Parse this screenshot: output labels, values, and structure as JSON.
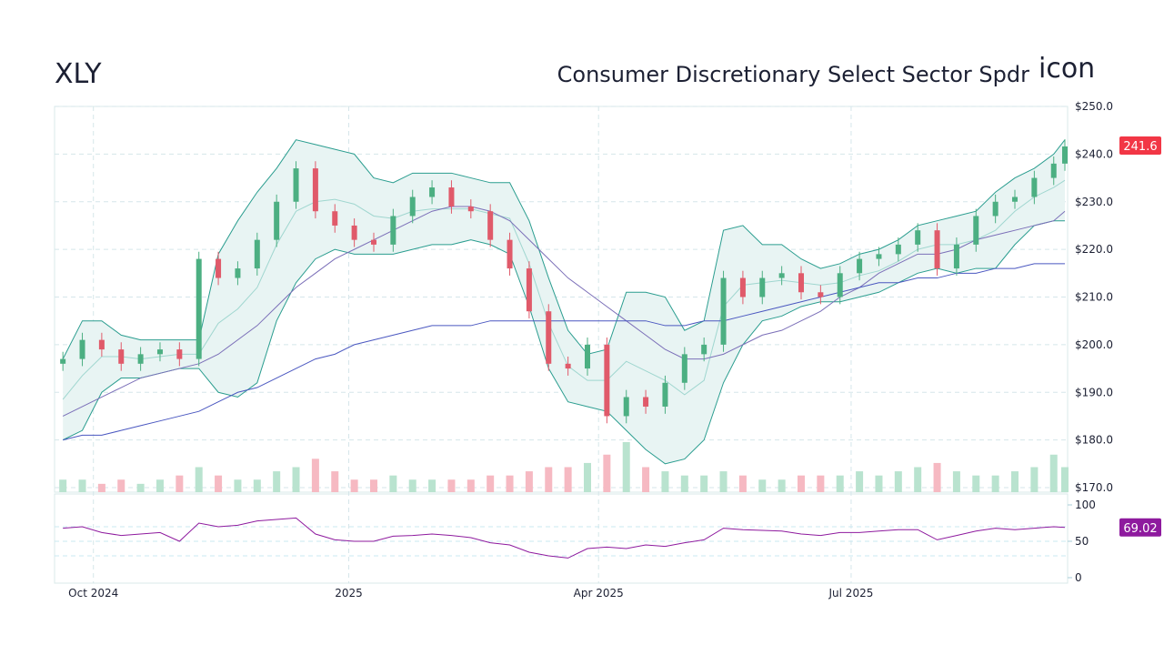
{
  "header": {
    "ticker": "XLY",
    "name": "Consumer Discretionary Select Sector Spdr",
    "icon_alt": "icon"
  },
  "chart_data": {
    "type": "candlestick",
    "title": "XLY",
    "colors": {
      "up": "#4caf82",
      "down": "#e05a6a",
      "band": "#2a9d8f",
      "band_fill": "#e8f4f3",
      "sma50": "#7b6fb8",
      "sma200": "#4a57c0",
      "rsi": "#8e1a9e",
      "last_price_badge": "#f23645",
      "rsi_badge": "#8e1a9e"
    },
    "price_axis": {
      "min": 170,
      "max": 250,
      "ticks": [
        "$250.0",
        "$240.0",
        "$230.0",
        "$220.0",
        "$210.0",
        "$200.0",
        "$190.0",
        "$180.0",
        "$170.0"
      ]
    },
    "rsi_axis": {
      "min": 0,
      "max": 100,
      "ticks": [
        "100",
        "50",
        "0"
      ],
      "guides": [
        70,
        50,
        30
      ]
    },
    "x_ticks": [
      {
        "date": "2024-10-01",
        "label": "Oct 2024"
      },
      {
        "date": "2025-01-01",
        "label": "2025"
      },
      {
        "date": "2025-04-01",
        "label": "Apr 2025"
      },
      {
        "date": "2025-07-01",
        "label": "Jul 2025"
      }
    ],
    "x_range": [
      "2024-09-17",
      "2025-09-17"
    ],
    "start_date": "2024-09-20",
    "last_price": "241.6",
    "last_rsi": "69.02",
    "close": [
      197,
      201,
      199,
      196,
      198,
      199,
      197,
      218,
      214,
      216,
      222,
      230,
      237,
      228,
      225,
      222,
      221,
      227,
      231,
      233,
      229,
      228,
      222,
      216,
      207,
      196,
      195,
      200,
      185,
      189,
      187,
      192,
      198,
      200,
      214,
      210,
      214,
      215,
      211,
      210,
      215,
      218,
      219,
      221,
      224,
      216,
      221,
      227,
      230,
      231,
      235,
      238,
      241.6
    ],
    "bb_upper": [
      197,
      205,
      205,
      202,
      201,
      201,
      201,
      201,
      219,
      226,
      232,
      237,
      243,
      242,
      241,
      240,
      235,
      234,
      236,
      236,
      236,
      235,
      234,
      234,
      226,
      214,
      203,
      198,
      199,
      211,
      211,
      210,
      203,
      205,
      224,
      225,
      221,
      221,
      218,
      216,
      217,
      219,
      220,
      222,
      225,
      226,
      227,
      228,
      232,
      235,
      237,
      240,
      243
    ],
    "bb_lower": [
      180,
      182,
      190,
      193,
      193,
      194,
      195,
      195,
      190,
      189,
      192,
      205,
      213,
      218,
      220,
      219,
      219,
      219,
      220,
      221,
      221,
      222,
      221,
      219,
      208,
      195,
      188,
      187,
      186,
      182,
      178,
      175,
      176,
      180,
      192,
      200,
      205,
      206,
      208,
      209,
      209,
      210,
      211,
      213,
      215,
      216,
      215,
      216,
      216,
      221,
      225,
      226,
      226
    ],
    "sma50": [
      185,
      187,
      189,
      191,
      193,
      194,
      195,
      196,
      198,
      201,
      204,
      208,
      212,
      215,
      218,
      220,
      222,
      224,
      226,
      228,
      229,
      229,
      228,
      226,
      222,
      218,
      214,
      211,
      208,
      205,
      202,
      199,
      197,
      197,
      198,
      200,
      202,
      203,
      205,
      207,
      210,
      212,
      215,
      217,
      219,
      219,
      220,
      222,
      223,
      224,
      225,
      226,
      228
    ],
    "sma200": [
      180,
      181,
      181,
      182,
      183,
      184,
      185,
      186,
      188,
      190,
      191,
      193,
      195,
      197,
      198,
      200,
      201,
      202,
      203,
      204,
      204,
      204,
      205,
      205,
      205,
      205,
      205,
      205,
      205,
      205,
      205,
      204,
      204,
      205,
      205,
      206,
      207,
      208,
      209,
      210,
      211,
      212,
      213,
      213,
      214,
      214,
      215,
      215,
      216,
      216,
      217,
      217,
      217
    ],
    "rsi": [
      68,
      70,
      62,
      58,
      60,
      62,
      50,
      75,
      70,
      72,
      78,
      80,
      82,
      60,
      52,
      50,
      50,
      57,
      58,
      60,
      58,
      55,
      48,
      45,
      35,
      30,
      27,
      40,
      42,
      40,
      45,
      43,
      48,
      52,
      68,
      66,
      65,
      64,
      60,
      58,
      62,
      62,
      64,
      66,
      66,
      52,
      58,
      64,
      68,
      66,
      68,
      70,
      69.02
    ],
    "volume": [
      3,
      3,
      2,
      3,
      2,
      3,
      4,
      6,
      4,
      3,
      3,
      5,
      6,
      8,
      5,
      3,
      3,
      4,
      3,
      3,
      3,
      3,
      4,
      4,
      5,
      6,
      6,
      7,
      9,
      12,
      6,
      5,
      4,
      4,
      5,
      4,
      3,
      3,
      4,
      4,
      4,
      5,
      4,
      5,
      6,
      7,
      5,
      4,
      4,
      5,
      6,
      9,
      6
    ]
  }
}
